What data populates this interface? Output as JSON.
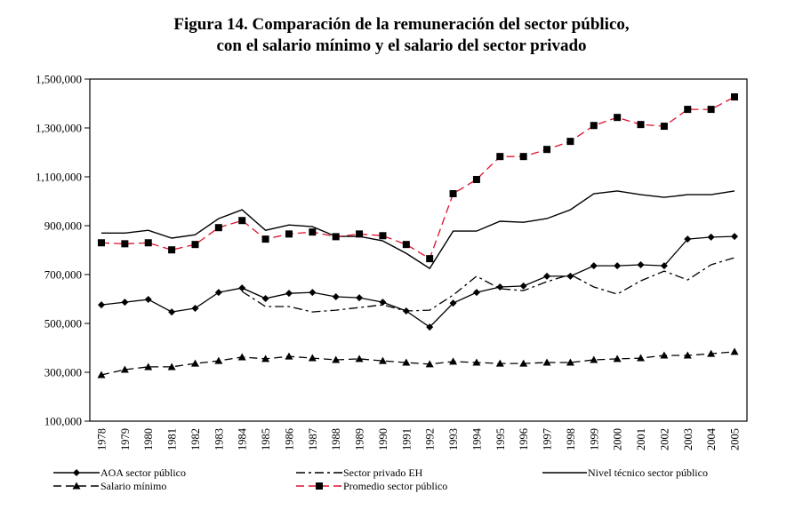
{
  "chart_data": {
    "type": "line",
    "title_lines": [
      "Figura 14. Comparación de la remuneración del sector público,",
      "con el salario mínimo y el salario del sector privado"
    ],
    "xlabel": "",
    "ylabel": "",
    "ylim": [
      100000,
      1500000
    ],
    "yticks": [
      100000,
      300000,
      500000,
      700000,
      900000,
      1100000,
      1300000,
      1500000
    ],
    "ytick_labels": [
      "100,000",
      "300,000",
      "500,000",
      "700,000",
      "900,000",
      "1,100,000",
      "1,300,000",
      "1,500,000"
    ],
    "grid": false,
    "legend_position": "bottom",
    "x": [
      "1978",
      "1979",
      "1980",
      "1981",
      "1982",
      "1983",
      "1984",
      "1985",
      "1986",
      "1987",
      "1988",
      "1989",
      "1990",
      "1991",
      "1992",
      "1993",
      "1994",
      "1995",
      "1996",
      "1997",
      "1998",
      "1999",
      "2000",
      "2001",
      "2002",
      "2003",
      "2004",
      "2005"
    ],
    "series": [
      {
        "name": "AOA sector público",
        "color": "#000000",
        "line": "solid",
        "marker": "diamond",
        "values": [
          576000,
          587000,
          598000,
          547000,
          562000,
          627000,
          645000,
          602000,
          623000,
          627000,
          609000,
          605000,
          587000,
          551000,
          485000,
          583000,
          627000,
          649000,
          653000,
          693000,
          693000,
          736000,
          736000,
          740000,
          736000,
          845000,
          853000,
          856000
        ]
      },
      {
        "name": "Sector privado EH",
        "color": "#000000",
        "line": "dashdot",
        "marker": "none",
        "values": [
          null,
          null,
          null,
          null,
          null,
          null,
          631000,
          569000,
          569000,
          547000,
          554000,
          565000,
          576000,
          551000,
          554000,
          616000,
          693000,
          642000,
          634000,
          671000,
          700000,
          649000,
          620000,
          674000,
          714000,
          678000,
          740000,
          769000
        ]
      },
      {
        "name": "Nivel técnico sector público",
        "color": "#000000",
        "line": "solid",
        "marker": "none",
        "values": [
          870000,
          870000,
          881000,
          849000,
          863000,
          929000,
          965000,
          881000,
          903000,
          896000,
          856000,
          856000,
          838000,
          787000,
          725000,
          878000,
          878000,
          918000,
          914000,
          929000,
          965000,
          1031000,
          1042000,
          1027000,
          1016000,
          1027000,
          1027000,
          1042000
        ]
      },
      {
        "name": "Salario mínimo",
        "color": "#000000",
        "line": "dashed",
        "marker": "triangle",
        "values": [
          289000,
          311000,
          322000,
          322000,
          336000,
          347000,
          362000,
          355000,
          365000,
          358000,
          351000,
          355000,
          347000,
          340000,
          333000,
          344000,
          340000,
          336000,
          336000,
          340000,
          340000,
          351000,
          355000,
          358000,
          369000,
          369000,
          376000,
          384000
        ]
      },
      {
        "name": "Promedio sector público",
        "color": "#e0102a",
        "line": "dashed",
        "marker": "square",
        "values": [
          830000,
          826000,
          830000,
          801000,
          823000,
          892000,
          921000,
          845000,
          866000,
          874000,
          855000,
          866000,
          859000,
          823000,
          765000,
          1031000,
          1089000,
          1183000,
          1183000,
          1212000,
          1245000,
          1310000,
          1343000,
          1314000,
          1307000,
          1376000,
          1376000,
          1427000
        ]
      }
    ],
    "legend_order": [
      0,
      1,
      2,
      3,
      4
    ]
  }
}
